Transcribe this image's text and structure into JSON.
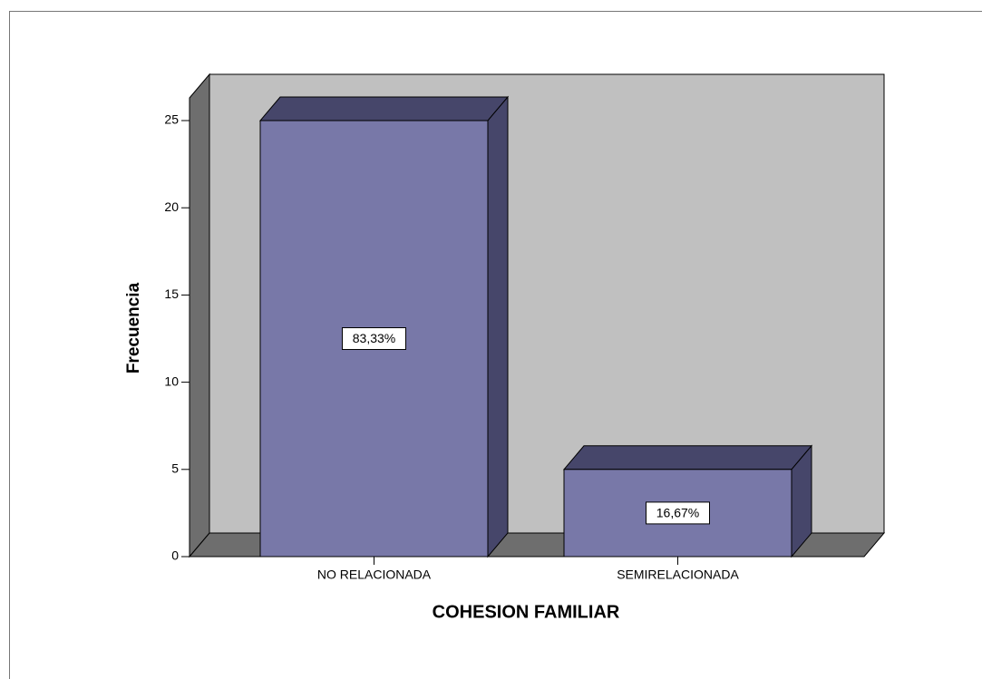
{
  "chart_data": {
    "type": "bar3d",
    "categories": [
      "NO RELACIONADA",
      "SEMIRELACIONADA"
    ],
    "values": [
      25,
      5
    ],
    "percent_labels": [
      "83,33%",
      "16,67%"
    ],
    "x_label": "COHESION FAMILIAR",
    "y_label": "Frecuencia",
    "color": "#7878a8",
    "ylim": [
      0,
      26.3
    ],
    "yticks": [
      0,
      5,
      10,
      15,
      20,
      25
    ]
  }
}
